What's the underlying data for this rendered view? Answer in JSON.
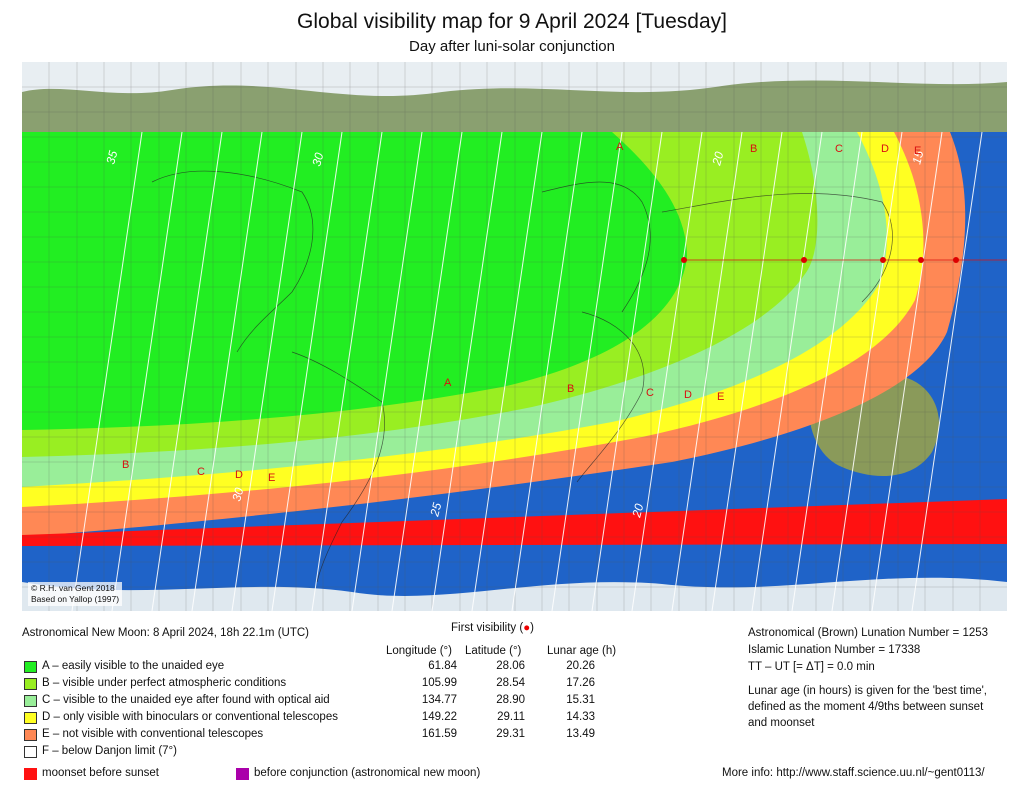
{
  "header": {
    "title": "Global visibility map for 9 April 2024 [Tuesday]",
    "subtitle": "Day after luni-solar conjunction"
  },
  "map": {
    "credit_line1": "© R.H. van Gent 2018",
    "credit_line2": "Based on Yallop (1997)",
    "zone_labels": [
      "A",
      "B",
      "C",
      "D",
      "E"
    ],
    "contour_labels": [
      "35",
      "30",
      "20",
      "15",
      "30",
      "25",
      "20"
    ],
    "colors": {
      "A": "#22ee22",
      "B": "#99ee22",
      "C": "#99ee99",
      "D": "#ffff22",
      "E": "#ff8855",
      "F": "#ffffff",
      "moonset": "#ff1111",
      "conjunction": "#aa00aa",
      "dot": "#dd0000"
    }
  },
  "info": {
    "new_moon": "Astronomical New Moon: 8 April 2024, 18h 22.1m (UTC)",
    "first_visibility": "First visibility (",
    "first_visibility_dot": "●",
    "first_visibility_close": ")",
    "col_longitude": "Longitude (°)",
    "col_latitude": "Latitude (°)",
    "col_age": "Lunar age (h)"
  },
  "legend": [
    {
      "code": "A",
      "text": "A – easily visible to the unaided eye",
      "color": "#22ee22",
      "lon": "61.84",
      "lat": "28.06",
      "age": "20.26"
    },
    {
      "code": "B",
      "text": "B – visible under perfect atmospheric conditions",
      "color": "#99ee22",
      "lon": "105.99",
      "lat": "28.54",
      "age": "17.26"
    },
    {
      "code": "C",
      "text": "C – visible to the unaided eye after found with optical aid",
      "color": "#99ee99",
      "lon": "134.77",
      "lat": "28.90",
      "age": "15.31"
    },
    {
      "code": "D",
      "text": "D – only visible with binoculars or conventional telescopes",
      "color": "#ffff22",
      "lon": "149.22",
      "lat": "29.11",
      "age": "14.33"
    },
    {
      "code": "E",
      "text": "E – not visible with conventional telescopes",
      "color": "#ff8855",
      "lon": "161.59",
      "lat": "29.31",
      "age": "13.49"
    },
    {
      "code": "F",
      "text": "F – below Danjon limit (7°)",
      "color": "#ffffff",
      "lon": "",
      "lat": "",
      "age": ""
    }
  ],
  "extra_legend": {
    "moonset": "moonset before sunset",
    "conjunction": "before conjunction (astronomical new moon)"
  },
  "right_info": {
    "brown": "Astronomical (Brown) Lunation Number = 1253",
    "islamic": "Islamic Lunation Number = 17338",
    "tt_ut": "TT – UT [= ΔT] = 0.0 min",
    "age_note_1": "Lunar age (in hours) is given for the 'best time',",
    "age_note_2": "defined as the moment 4/9ths between sunset",
    "age_note_3": "and moonset",
    "more_info": "More info: http://www.staff.science.uu.nl/~gent0113/"
  }
}
